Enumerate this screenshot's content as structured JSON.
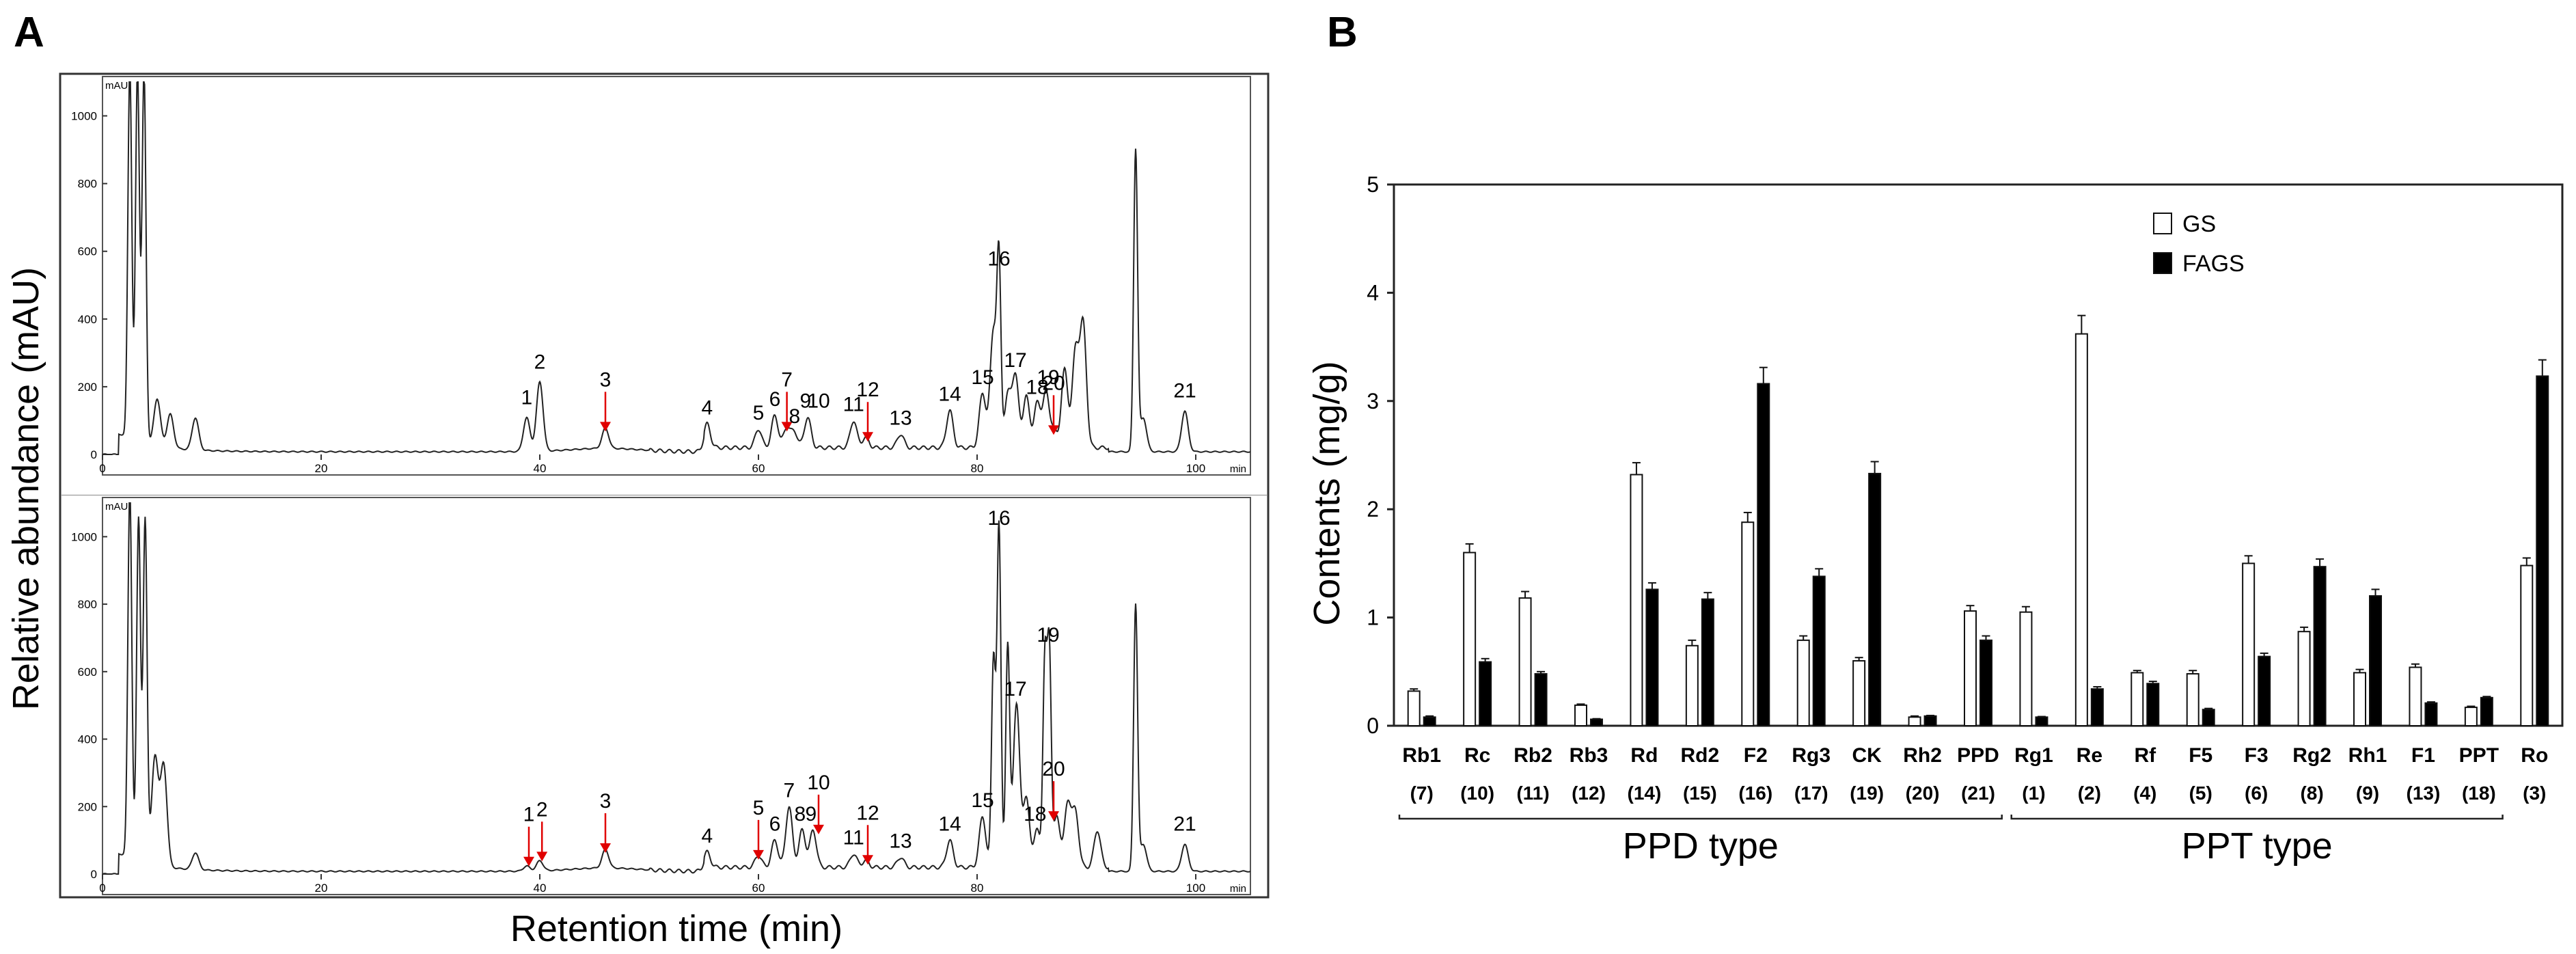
{
  "panel_labels": [
    "A",
    "B"
  ],
  "chart_data": [
    {
      "type": "line",
      "panel": "A",
      "ylabel": "Relative abundance (mAU)",
      "xlabel": "Retention time (min)",
      "x_unit": "min",
      "y_unit": "mAU",
      "xlim": [
        0,
        105
      ],
      "ylim": [
        0,
        1100
      ],
      "x_ticks": [
        0,
        20,
        40,
        60,
        80,
        100
      ],
      "y_ticks": [
        0,
        200,
        400,
        600,
        800,
        1000
      ],
      "subplots": [
        {
          "name": "top",
          "peaks": [
            {
              "x": 2.5,
              "y": 1100
            },
            {
              "x": 3.2,
              "y": 1100
            },
            {
              "x": 3.8,
              "y": 1100
            },
            {
              "x": 5.0,
              "y": 140
            },
            {
              "x": 6.2,
              "y": 100
            },
            {
              "x": 8.5,
              "y": 95
            },
            {
              "x": 38.8,
              "y": 100
            },
            {
              "x": 40.0,
              "y": 205
            },
            {
              "x": 46.0,
              "y": 60
            },
            {
              "x": 55.3,
              "y": 70
            },
            {
              "x": 60.0,
              "y": 55
            },
            {
              "x": 61.5,
              "y": 95
            },
            {
              "x": 62.6,
              "y": 60
            },
            {
              "x": 63.3,
              "y": 45
            },
            {
              "x": 64.5,
              "y": 90
            },
            {
              "x": 68.7,
              "y": 80
            },
            {
              "x": 69.8,
              "y": 30
            },
            {
              "x": 73.0,
              "y": 40
            },
            {
              "x": 77.5,
              "y": 110
            },
            {
              "x": 80.5,
              "y": 160
            },
            {
              "x": 81.5,
              "y": 350
            },
            {
              "x": 82.0,
              "y": 510
            },
            {
              "x": 82.8,
              "y": 150
            },
            {
              "x": 83.5,
              "y": 210
            },
            {
              "x": 84.5,
              "y": 150
            },
            {
              "x": 85.5,
              "y": 130
            },
            {
              "x": 86.3,
              "y": 160
            },
            {
              "x": 87.0,
              "y": 50
            },
            {
              "x": 88.0,
              "y": 230
            },
            {
              "x": 89.0,
              "y": 280
            },
            {
              "x": 89.7,
              "y": 360
            },
            {
              "x": 94.5,
              "y": 890
            },
            {
              "x": 95.2,
              "y": 100
            },
            {
              "x": 99.0,
              "y": 120
            }
          ],
          "peak_labels": [
            {
              "text": "1",
              "x": 38.8,
              "arrow": false
            },
            {
              "text": "2",
              "x": 40.0,
              "arrow": false
            },
            {
              "text": "3",
              "x": 46.0,
              "arrow": true
            },
            {
              "text": "4",
              "x": 55.3,
              "arrow": false
            },
            {
              "text": "5",
              "x": 60.0,
              "arrow": false
            },
            {
              "text": "6",
              "x": 61.5,
              "arrow": false
            },
            {
              "text": "7",
              "x": 62.6,
              "arrow": true
            },
            {
              "text": "8",
              "x": 63.3,
              "arrow": false
            },
            {
              "text": "9",
              "x": 64.3,
              "arrow": false
            },
            {
              "text": "10",
              "x": 65.5,
              "arrow": false
            },
            {
              "text": "11",
              "x": 68.7,
              "arrow": false
            },
            {
              "text": "12",
              "x": 70.0,
              "arrow": true
            },
            {
              "text": "13",
              "x": 73.0,
              "arrow": false
            },
            {
              "text": "14",
              "x": 77.5,
              "arrow": false
            },
            {
              "text": "15",
              "x": 80.5,
              "arrow": false
            },
            {
              "text": "16",
              "x": 82.0,
              "arrow": false
            },
            {
              "text": "17",
              "x": 83.5,
              "arrow": false
            },
            {
              "text": "18",
              "x": 85.5,
              "arrow": false
            },
            {
              "text": "19",
              "x": 86.5,
              "arrow": false
            },
            {
              "text": "20",
              "x": 87.0,
              "arrow": true
            },
            {
              "text": "21",
              "x": 99.0,
              "arrow": false
            }
          ]
        },
        {
          "name": "bottom",
          "peaks": [
            {
              "x": 2.5,
              "y": 1100
            },
            {
              "x": 3.3,
              "y": 1020
            },
            {
              "x": 3.9,
              "y": 1020
            },
            {
              "x": 4.8,
              "y": 320
            },
            {
              "x": 5.6,
              "y": 300
            },
            {
              "x": 8.5,
              "y": 50
            },
            {
              "x": 38.8,
              "y": 15
            },
            {
              "x": 40.0,
              "y": 30
            },
            {
              "x": 46.0,
              "y": 55
            },
            {
              "x": 55.3,
              "y": 45
            },
            {
              "x": 60.0,
              "y": 35
            },
            {
              "x": 61.5,
              "y": 80
            },
            {
              "x": 62.8,
              "y": 180
            },
            {
              "x": 64.0,
              "y": 110
            },
            {
              "x": 65.0,
              "y": 110
            },
            {
              "x": 68.7,
              "y": 40
            },
            {
              "x": 69.8,
              "y": 20
            },
            {
              "x": 73.0,
              "y": 30
            },
            {
              "x": 77.5,
              "y": 80
            },
            {
              "x": 80.5,
              "y": 150
            },
            {
              "x": 81.5,
              "y": 620
            },
            {
              "x": 82.0,
              "y": 1010
            },
            {
              "x": 82.8,
              "y": 650
            },
            {
              "x": 83.6,
              "y": 480
            },
            {
              "x": 84.5,
              "y": 200
            },
            {
              "x": 85.5,
              "y": 110
            },
            {
              "x": 86.2,
              "y": 600
            },
            {
              "x": 86.6,
              "y": 640
            },
            {
              "x": 87.3,
              "y": 150
            },
            {
              "x": 88.3,
              "y": 190
            },
            {
              "x": 89.0,
              "y": 160
            },
            {
              "x": 91.0,
              "y": 110
            },
            {
              "x": 94.5,
              "y": 790
            },
            {
              "x": 95.2,
              "y": 80
            },
            {
              "x": 99.0,
              "y": 80
            }
          ],
          "peak_labels": [
            {
              "text": "1",
              "x": 39.0,
              "arrow": true
            },
            {
              "text": "2",
              "x": 40.2,
              "arrow": true
            },
            {
              "text": "3",
              "x": 46.0,
              "arrow": true
            },
            {
              "text": "4",
              "x": 55.3,
              "arrow": false
            },
            {
              "text": "5",
              "x": 60.0,
              "arrow": true
            },
            {
              "text": "6",
              "x": 61.5,
              "arrow": false
            },
            {
              "text": "7",
              "x": 62.8,
              "arrow": false
            },
            {
              "text": "8",
              "x": 63.8,
              "arrow": false
            },
            {
              "text": "9",
              "x": 64.8,
              "arrow": false
            },
            {
              "text": "10",
              "x": 65.5,
              "arrow": true
            },
            {
              "text": "11",
              "x": 68.7,
              "arrow": false
            },
            {
              "text": "12",
              "x": 70.0,
              "arrow": true
            },
            {
              "text": "13",
              "x": 73.0,
              "arrow": false
            },
            {
              "text": "14",
              "x": 77.5,
              "arrow": false
            },
            {
              "text": "15",
              "x": 80.5,
              "arrow": false
            },
            {
              "text": "16",
              "x": 82.0,
              "arrow": false
            },
            {
              "text": "17",
              "x": 83.5,
              "arrow": false
            },
            {
              "text": "18",
              "x": 85.3,
              "arrow": false
            },
            {
              "text": "19",
              "x": 86.5,
              "arrow": false
            },
            {
              "text": "20",
              "x": 87.0,
              "arrow": true
            },
            {
              "text": "21",
              "x": 99.0,
              "arrow": false
            }
          ]
        }
      ]
    },
    {
      "type": "bar",
      "panel": "B",
      "ylabel": "Contents (mg/g)",
      "ylim": [
        0,
        5
      ],
      "y_ticks": [
        0,
        1,
        2,
        3,
        4,
        5
      ],
      "legend_position": "top-center",
      "categories": [
        "Rb1",
        "Rc",
        "Rb2",
        "Rb3",
        "Rd",
        "Rd2",
        "F2",
        "Rg3",
        "CK",
        "Rh2",
        "PPD",
        "Rg1",
        "Re",
        "Rf",
        "F5",
        "F3",
        "Rg2",
        "Rh1",
        "F1",
        "PPT",
        "Ro"
      ],
      "peak_numbers": [
        "(7)",
        "(10)",
        "(11)",
        "(12)",
        "(14)",
        "(15)",
        "(16)",
        "(17)",
        "(19)",
        "(20)",
        "(21)",
        "(1)",
        "(2)",
        "(4)",
        "(5)",
        "(6)",
        "(8)",
        "(9)",
        "(13)",
        "(18)",
        "(3)"
      ],
      "series": [
        {
          "name": "GS",
          "color": "#ffffff",
          "values": [
            0.32,
            1.6,
            1.18,
            0.19,
            2.32,
            0.74,
            1.88,
            0.79,
            0.6,
            0.08,
            1.06,
            1.05,
            3.62,
            0.49,
            0.48,
            1.5,
            0.87,
            0.49,
            0.54,
            0.17,
            1.48
          ],
          "errors": [
            0.02,
            0.08,
            0.06,
            0.01,
            0.11,
            0.05,
            0.09,
            0.04,
            0.03,
            0.01,
            0.05,
            0.05,
            0.17,
            0.02,
            0.03,
            0.07,
            0.04,
            0.03,
            0.03,
            0.01,
            0.07
          ]
        },
        {
          "name": "FAGS",
          "color": "#000000",
          "values": [
            0.08,
            0.59,
            0.48,
            0.06,
            1.26,
            1.17,
            3.16,
            1.38,
            2.33,
            0.09,
            0.79,
            0.08,
            0.34,
            0.39,
            0.15,
            0.64,
            1.47,
            1.2,
            0.21,
            0.26,
            3.23
          ],
          "errors": [
            0.01,
            0.03,
            0.02,
            0.005,
            0.06,
            0.06,
            0.15,
            0.07,
            0.11,
            0.005,
            0.04,
            0.005,
            0.02,
            0.02,
            0.01,
            0.03,
            0.07,
            0.06,
            0.01,
            0.01,
            0.15
          ]
        }
      ],
      "groups": [
        {
          "label": "PPD type",
          "from": 0,
          "to": 10
        },
        {
          "label": "PPT type",
          "from": 11,
          "to": 19
        }
      ]
    }
  ]
}
